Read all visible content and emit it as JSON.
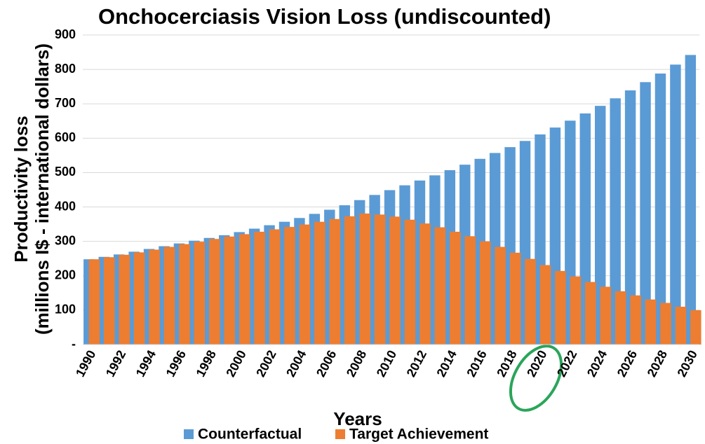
{
  "chart_data": {
    "type": "bar",
    "title": "Onchocerciasis Vision Loss (undiscounted)",
    "xlabel": "Years",
    "ylabel": [
      "Productivity loss",
      "(millions I$ - international dollars)"
    ],
    "categories": [
      "1990",
      null,
      "1992",
      null,
      "1994",
      null,
      "1996",
      null,
      "1998",
      null,
      "2000",
      null,
      "2002",
      null,
      "2004",
      null,
      "2006",
      null,
      "2008",
      null,
      "2010",
      null,
      "2012",
      null,
      "2014",
      null,
      "2016",
      null,
      "2018",
      null,
      "2020",
      null,
      "2022",
      null,
      "2024",
      null,
      "2026",
      null,
      "2028",
      null,
      "2030"
    ],
    "series": [
      {
        "name": "Counterfactual",
        "color": "#5b9bd5",
        "values": [
          248,
          255,
          262,
          270,
          278,
          286,
          294,
          302,
          310,
          318,
          327,
          337,
          347,
          357,
          368,
          380,
          392,
          405,
          420,
          435,
          449,
          463,
          477,
          492,
          507,
          523,
          540,
          557,
          574,
          592,
          611,
          631,
          651,
          672,
          694,
          716,
          739,
          763,
          788,
          814,
          842
        ]
      },
      {
        "name": "Target Achievement",
        "color": "#ed7d31",
        "values": [
          248,
          254,
          261,
          268,
          276,
          284,
          292,
          299,
          307,
          314,
          321,
          328,
          335,
          342,
          349,
          357,
          365,
          373,
          381,
          378,
          372,
          363,
          352,
          341,
          328,
          315,
          300,
          284,
          267,
          249,
          231,
          214,
          198,
          182,
          168,
          155,
          143,
          131,
          121,
          110,
          100
        ]
      }
    ],
    "ylim": [
      0,
      900
    ],
    "yticks": [
      {
        "value": 0,
        "label": "-"
      },
      100,
      200,
      300,
      400,
      500,
      600,
      700,
      800,
      900
    ],
    "grid": true,
    "legend": "bottom"
  }
}
